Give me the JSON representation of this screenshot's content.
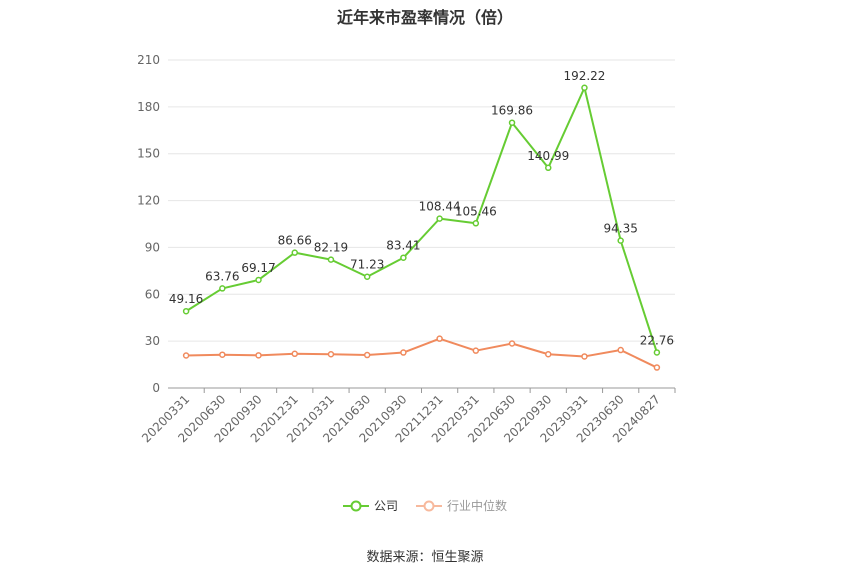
{
  "chart_data": {
    "type": "line",
    "title": "近年来市盈率情况（倍）",
    "categories": [
      "20200331",
      "20200630",
      "20200930",
      "20201231",
      "20210331",
      "20210630",
      "20210930",
      "20211231",
      "20220331",
      "20220630",
      "20220930",
      "20230331",
      "20230630",
      "20240827"
    ],
    "series": [
      {
        "name": "公司",
        "color": "#66cc33",
        "values": [
          49.16,
          63.76,
          69.17,
          86.66,
          82.19,
          71.23,
          83.41,
          108.44,
          105.46,
          169.86,
          140.99,
          192.22,
          94.35,
          22.76
        ],
        "value_labels": [
          "49.16",
          "63.76",
          "69.17",
          "86.66",
          "82.19",
          "71.23",
          "83.41",
          "108.44",
          "105.46",
          "169.86",
          "140.99",
          "192.22",
          "94.35",
          "22.76"
        ]
      },
      {
        "name": "行业中位数",
        "color": "#f08a5d",
        "values": [
          20.8,
          21.3,
          20.9,
          21.9,
          21.6,
          21.1,
          22.7,
          31.6,
          23.9,
          28.5,
          21.6,
          20.2,
          24.3,
          13.1
        ]
      }
    ],
    "ylim": [
      0,
      210
    ],
    "yticks": [
      0,
      30,
      60,
      90,
      120,
      150,
      180,
      210
    ],
    "ytick_labels": [
      "0",
      "30",
      "60",
      "90",
      "120",
      "150",
      "180",
      "210"
    ],
    "grid": true,
    "legend_position": "bottom"
  },
  "source": "数据来源：恒生聚源"
}
